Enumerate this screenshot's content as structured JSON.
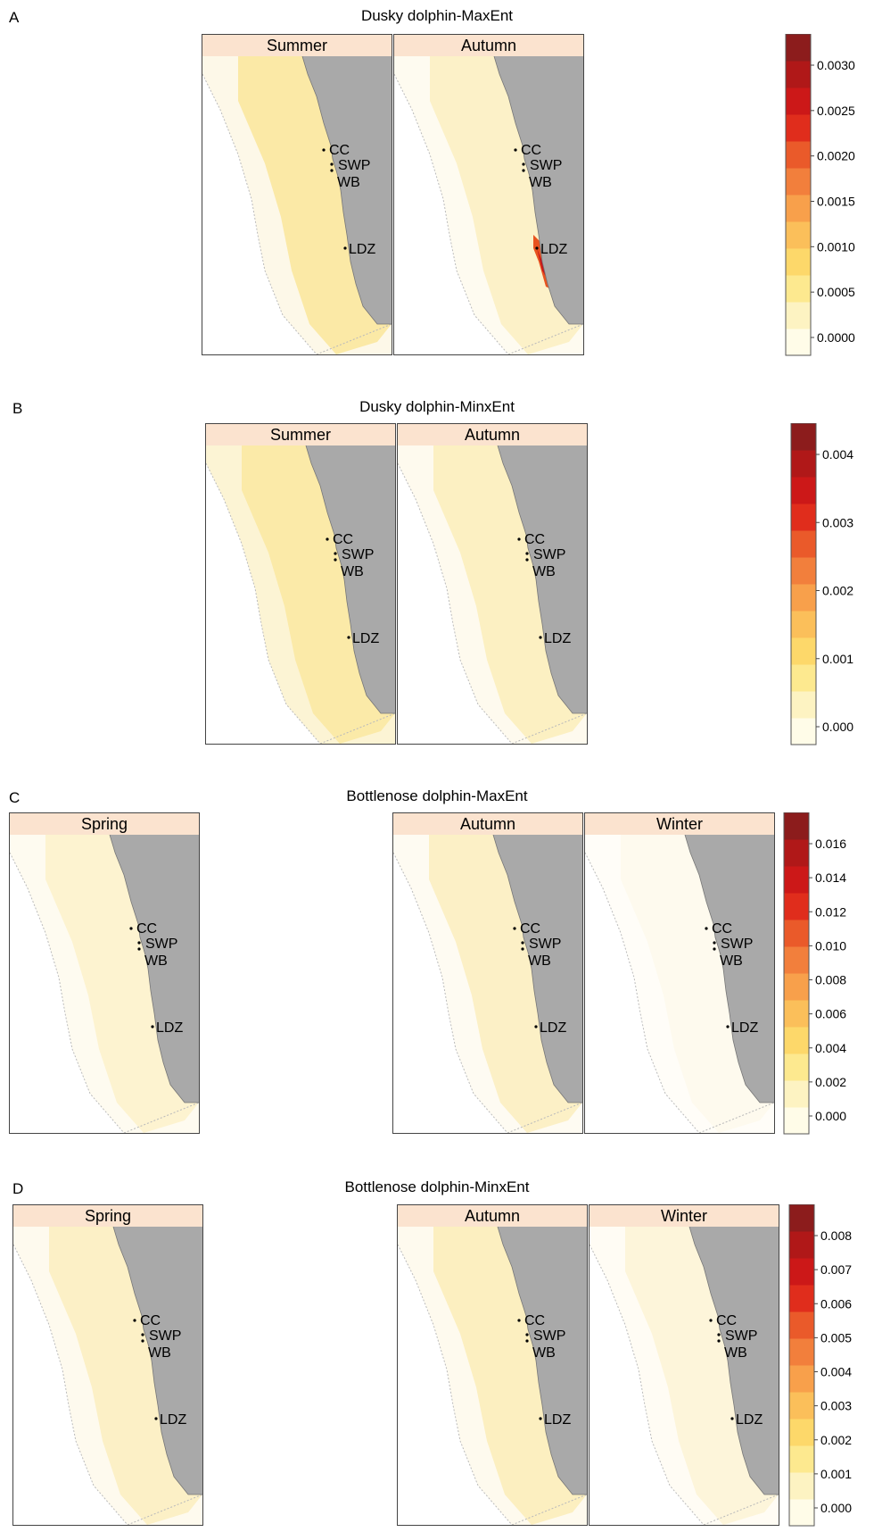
{
  "figure_rows": [
    {
      "letter": "A",
      "title": "Dusky dolphin-MaxEnt",
      "panels": [
        {
          "season": "Summer",
          "fill": "#fbe9a6",
          "outer": "#fdf8e8",
          "hotspot": false
        },
        {
          "season": "Autumn",
          "fill": "#fcf1c8",
          "outer": "#fefbf0",
          "hotspot": true
        }
      ],
      "colorbar": {
        "ticks": [
          "0.0030",
          "0.0025",
          "0.0020",
          "0.0015",
          "0.0010",
          "0.0005",
          "0.0000"
        ]
      }
    },
    {
      "letter": "B",
      "title": "Dusky dolphin-MinxEnt",
      "panels": [
        {
          "season": "Summer",
          "fill": "#fbeaa8",
          "outer": "#fcf4d4",
          "hotspot": false
        },
        {
          "season": "Autumn",
          "fill": "#fcf0c2",
          "outer": "#fefaee",
          "hotspot": false
        }
      ],
      "colorbar": {
        "ticks": [
          "0.004",
          "0.003",
          "0.002",
          "0.001",
          "0.000"
        ]
      }
    },
    {
      "letter": "C",
      "title": "Bottlenose dolphin-MaxEnt",
      "panels": [
        {
          "season": "Spring",
          "fill": "#fdf3d0",
          "outer": "#fefbf0",
          "hotspot": false
        },
        {
          "season": "Autumn",
          "fill": "#fcf0c6",
          "outer": "#fefbf2",
          "hotspot": false
        },
        {
          "season": "Winter",
          "fill": "#fefaee",
          "outer": "#fffdf8",
          "hotspot": false
        }
      ],
      "colorbar": {
        "ticks": [
          "0.016",
          "0.014",
          "0.012",
          "0.010",
          "0.008",
          "0.006",
          "0.004",
          "0.002",
          "0.000"
        ]
      }
    },
    {
      "letter": "D",
      "title": "Bottlenose dolphin-MinxEnt",
      "panels": [
        {
          "season": "Spring",
          "fill": "#fcf0c6",
          "outer": "#fefaee",
          "hotspot": false
        },
        {
          "season": "Autumn",
          "fill": "#fcefc0",
          "outer": "#fefaee",
          "hotspot": false
        },
        {
          "season": "Winter",
          "fill": "#fdf5da",
          "outer": "#fffcf4",
          "hotspot": false
        }
      ],
      "colorbar": {
        "ticks": [
          "0.008",
          "0.007",
          "0.006",
          "0.005",
          "0.004",
          "0.003",
          "0.002",
          "0.001",
          "0.000"
        ]
      }
    }
  ],
  "locations": [
    "CC",
    "SWP",
    "WB",
    "LDZ"
  ],
  "palette": [
    "#fffce8",
    "#fdf3c2",
    "#fde98f",
    "#fdd86a",
    "#fbbf5a",
    "#f8a04b",
    "#f27f3c",
    "#ea5a2a",
    "#e02d1c",
    "#cc1818",
    "#b01818",
    "#8c1c1c"
  ]
}
